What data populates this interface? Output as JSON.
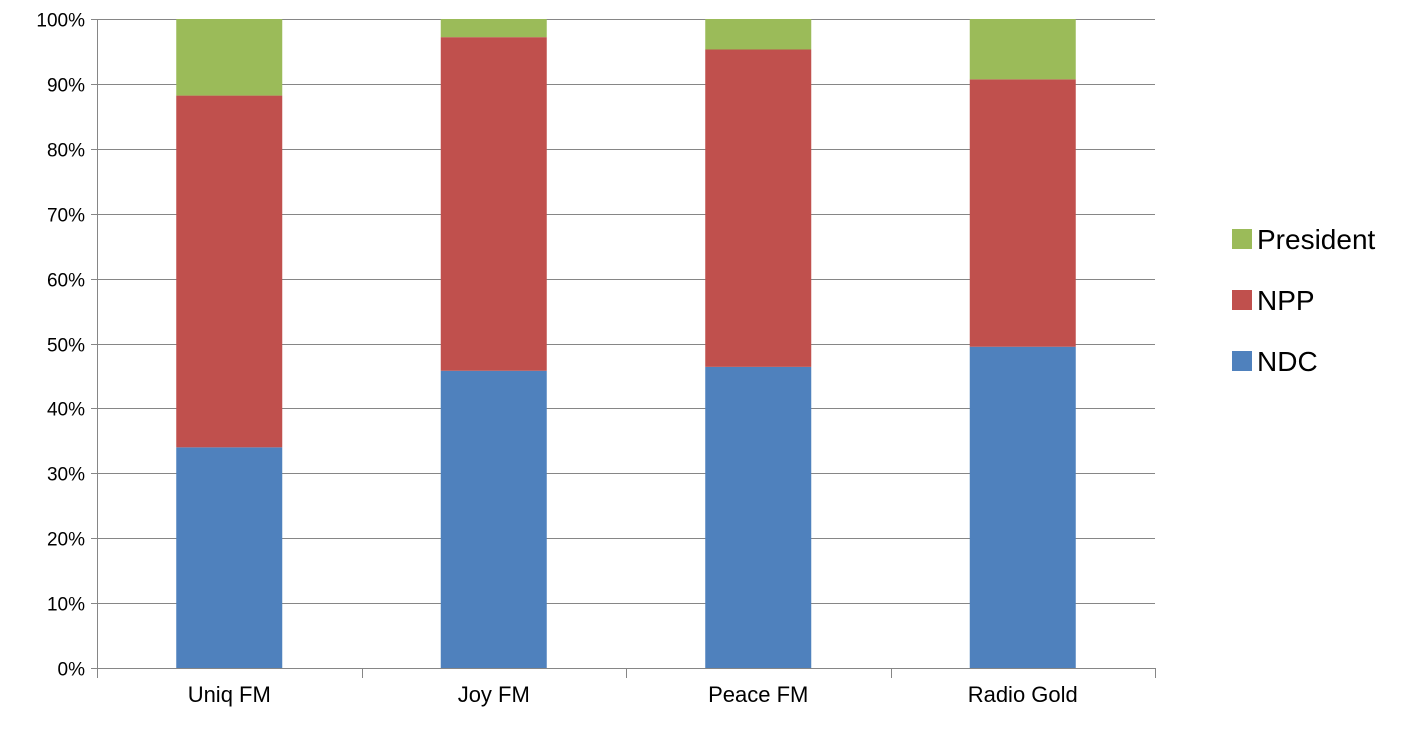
{
  "chart_data": {
    "type": "bar",
    "stacked": true,
    "percent_stacked": true,
    "categories": [
      "Uniq FM",
      "Joy FM",
      "Peace FM",
      "Radio Gold"
    ],
    "series": [
      {
        "name": "NDC",
        "values": [
          34,
          45.8,
          46.4,
          49.5
        ],
        "color": "#4F81BD"
      },
      {
        "name": "NPP",
        "values": [
          54.2,
          51.4,
          48.9,
          41.2
        ],
        "color": "#C0504D"
      },
      {
        "name": "President",
        "values": [
          11.8,
          2.8,
          4.7,
          9.3
        ],
        "color": "#9BBB59"
      }
    ],
    "yticks": [
      "0%",
      "10%",
      "20%",
      "30%",
      "40%",
      "50%",
      "60%",
      "70%",
      "80%",
      "90%",
      "100%"
    ],
    "ylim": [
      0,
      100
    ],
    "grid": true,
    "legend": {
      "position": "right",
      "order": [
        "President",
        "NPP",
        "NDC"
      ]
    },
    "title": "",
    "xlabel": "",
    "ylabel": ""
  }
}
